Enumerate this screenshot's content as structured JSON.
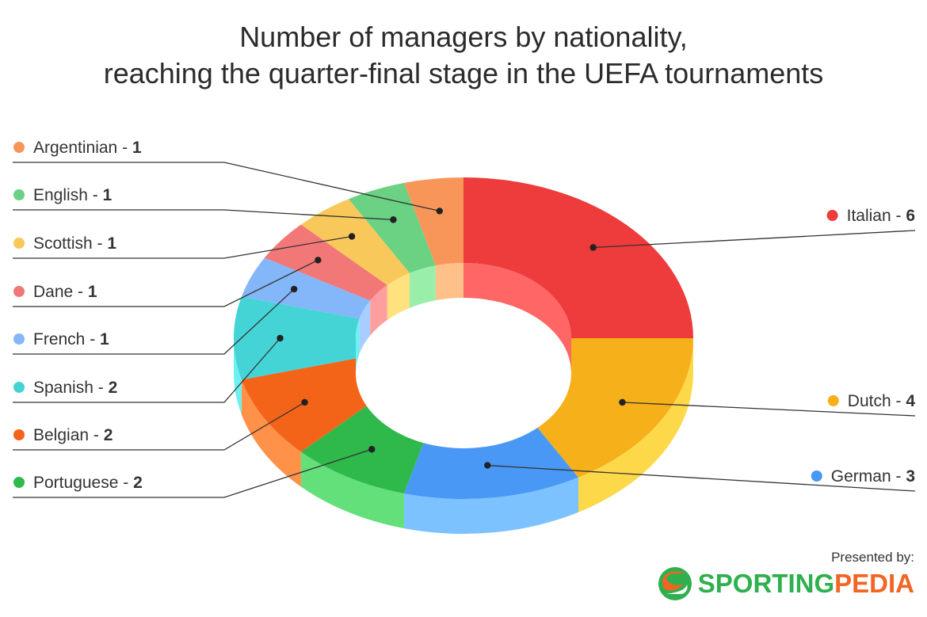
{
  "title_lines": [
    "Number of managers by nationality,",
    "reaching the quarter-final stage in the UEFA tournaments"
  ],
  "footer": {
    "presented_by": "Presented by:",
    "brand_part1": "SPORTING",
    "brand_part2": "PEDIA"
  },
  "colors": {
    "brand_green": "#2eb04f",
    "brand_orange": "#f26522"
  },
  "chart_data": {
    "type": "pie",
    "variant": "3d-donut",
    "title": "Number of managers by nationality, reaching the quarter-final stage in the UEFA tournaments",
    "slices": [
      {
        "label": "Italian",
        "value": 6,
        "color": "#ee3b3b",
        "side": "#ff6666"
      },
      {
        "label": "Dutch",
        "value": 4,
        "color": "#f5b01a",
        "side": "#fdd94a"
      },
      {
        "label": "German",
        "value": 3,
        "color": "#4a98f5",
        "side": "#7cc2ff"
      },
      {
        "label": "Portuguese",
        "value": 2,
        "color": "#2fb94b",
        "side": "#63e07a"
      },
      {
        "label": "Belgian",
        "value": 2,
        "color": "#f46418",
        "side": "#ff9148"
      },
      {
        "label": "Spanish",
        "value": 2,
        "color": "#45d4d6",
        "side": "#6cf1f3"
      },
      {
        "label": "French",
        "value": 1,
        "color": "#84b6fa",
        "side": "#a8ceff"
      },
      {
        "label": "Dane",
        "value": 1,
        "color": "#f27878",
        "side": "#ff9e9e"
      },
      {
        "label": "Scottish",
        "value": 1,
        "color": "#f8c95a",
        "side": "#ffe17e"
      },
      {
        "label": "English",
        "value": 1,
        "color": "#6bd183",
        "side": "#99efaa"
      },
      {
        "label": "Argentinian",
        "value": 1,
        "color": "#f8965a",
        "side": "#ffc08a"
      }
    ],
    "legend_placement": "left and right of the chart with leader lines"
  }
}
